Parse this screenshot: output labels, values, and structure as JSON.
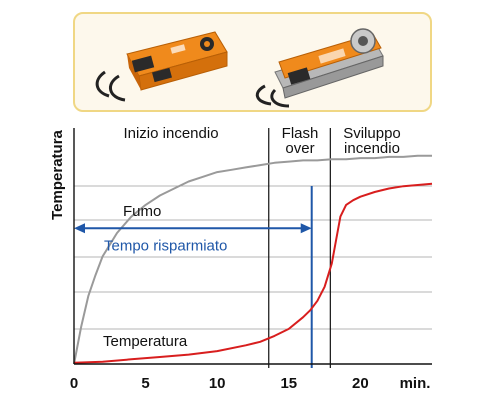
{
  "colors": {
    "smoke": "#9a9a9a",
    "temperature": "#d81e1e",
    "saved_time": "#1f57a8",
    "grid": "#b5b5b5",
    "panel_border": "#f0d784",
    "actuator_orange": "#f08a1c"
  },
  "products": [
    {
      "name": "actuator-compact",
      "icon": "damper-actuator-icon"
    },
    {
      "name": "actuator-spring-return",
      "icon": "damper-actuator-icon"
    }
  ],
  "chart_data": {
    "type": "line",
    "ylabel": "Temperatura",
    "xlabel": "min.",
    "xlim": [
      0,
      25
    ],
    "ylim": [
      0,
      10
    ],
    "x_ticks": [
      "0",
      "5",
      "10",
      "15",
      "20"
    ],
    "grid": "horizontal",
    "phases": [
      {
        "label_lines": [
          "Inizio incendio"
        ],
        "x_start": 0,
        "x_end": 13.6
      },
      {
        "label_lines": [
          "Flash",
          "over"
        ],
        "x_start": 13.6,
        "x_end": 17.9
      },
      {
        "label_lines": [
          "Sviluppo",
          "incendio"
        ],
        "x_start": 17.9,
        "x_end": 25
      }
    ],
    "series": [
      {
        "name": "Fumo",
        "color": "#9a9a9a",
        "x": [
          0,
          0.5,
          1,
          1.5,
          2,
          3,
          4,
          5,
          6,
          7,
          8,
          9,
          10,
          11,
          12,
          13,
          14,
          15,
          16,
          17,
          18,
          19,
          20,
          21,
          22,
          23,
          24,
          25
        ],
        "y": [
          0,
          1.6,
          2.9,
          3.8,
          4.6,
          5.6,
          6.3,
          6.8,
          7.2,
          7.5,
          7.8,
          8.0,
          8.2,
          8.3,
          8.4,
          8.5,
          8.6,
          8.65,
          8.7,
          8.7,
          8.75,
          8.75,
          8.8,
          8.8,
          8.85,
          8.85,
          8.9,
          8.9
        ]
      },
      {
        "name": "Temperatura",
        "color": "#d81e1e",
        "x": [
          0,
          2,
          4,
          6,
          8,
          10,
          12,
          13,
          14,
          15,
          16,
          16.5,
          17,
          17.5,
          18,
          18.3,
          18.6,
          19,
          19.5,
          20,
          21,
          22,
          23,
          24,
          25
        ],
        "y": [
          0.05,
          0.1,
          0.2,
          0.3,
          0.4,
          0.55,
          0.8,
          0.95,
          1.2,
          1.5,
          2.0,
          2.3,
          2.7,
          3.3,
          4.3,
          5.3,
          6.3,
          6.8,
          7.0,
          7.15,
          7.35,
          7.5,
          7.6,
          7.65,
          7.7
        ]
      }
    ],
    "markers": {
      "flashover_line_x": 13.6,
      "development_line_x": 17.9,
      "detection_line_x": 16.6
    },
    "annotations": [
      {
        "text": "Tempo risparmiato",
        "type": "double-arrow",
        "x_start": 0,
        "x_end": 16.6,
        "y": 5.8
      }
    ]
  }
}
